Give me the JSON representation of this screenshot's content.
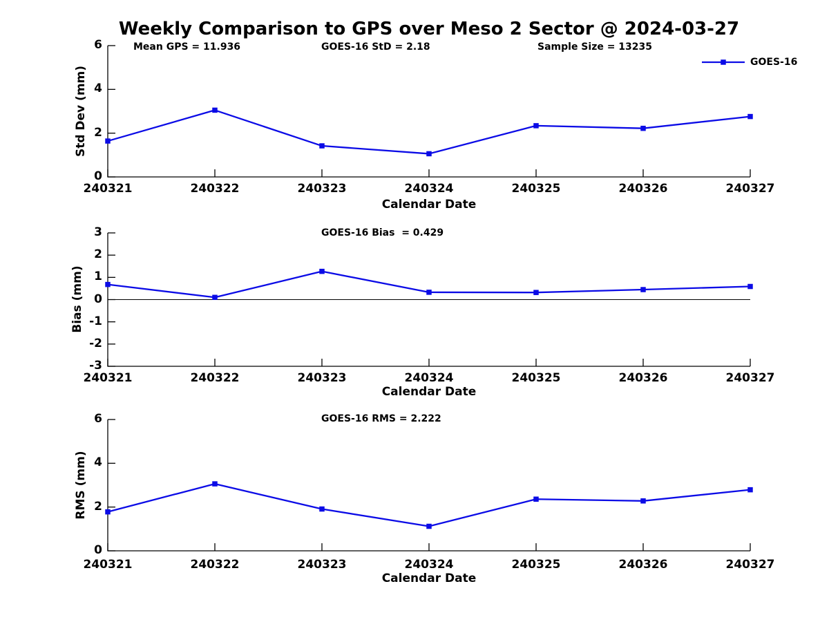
{
  "figure_title": "Weekly Comparison to GPS over Meso 2 Sector @ 2024-03-27",
  "colors": {
    "accent": "#0b0be6",
    "axis": "#000000",
    "background": "#ffffff",
    "text": "#000000"
  },
  "legend": {
    "label": "GOES-16",
    "position": "top-right",
    "marker": "filled-square"
  },
  "chart_data": [
    {
      "type": "line",
      "name": "std-dev",
      "ylabel": "Std Dev (mm)",
      "xlabel": "Calendar Date",
      "ylim": [
        0,
        6
      ],
      "yticks": [
        0,
        2,
        4,
        6
      ],
      "grid": false,
      "categories": [
        "240321",
        "240322",
        "240323",
        "240324",
        "240325",
        "240326",
        "240327"
      ],
      "annotations": [
        "Mean GPS = 11.936",
        "GOES-16 StD = 2.18",
        "Sample Size = 13235"
      ],
      "legend_entries": [
        "GOES-16"
      ],
      "series": [
        {
          "name": "GOES-16",
          "color": "#0b0be6",
          "marker": "square",
          "values": [
            1.64,
            3.05,
            1.42,
            1.06,
            2.34,
            2.22,
            2.76
          ]
        }
      ]
    },
    {
      "type": "line",
      "name": "bias",
      "ylabel": "Bias (mm)",
      "xlabel": "Calendar Date",
      "ylim": [
        -3,
        3
      ],
      "yticks": [
        3,
        2,
        1,
        0,
        -1,
        -2,
        -3
      ],
      "grid": false,
      "zero_line": true,
      "categories": [
        "240321",
        "240322",
        "240323",
        "240324",
        "240325",
        "240326",
        "240327"
      ],
      "annotations": [
        "GOES-16 Bias  = 0.429"
      ],
      "series": [
        {
          "name": "GOES-16",
          "color": "#0b0be6",
          "marker": "square",
          "values": [
            0.68,
            0.1,
            1.27,
            0.33,
            0.32,
            0.45,
            0.59
          ]
        }
      ]
    },
    {
      "type": "line",
      "name": "rms",
      "ylabel": "RMS (mm)",
      "xlabel": "Calendar Date",
      "ylim": [
        0,
        6
      ],
      "yticks": [
        0,
        2,
        4,
        6
      ],
      "grid": false,
      "categories": [
        "240321",
        "240322",
        "240323",
        "240324",
        "240325",
        "240326",
        "240327"
      ],
      "annotations": [
        "GOES-16 RMS = 2.222"
      ],
      "series": [
        {
          "name": "GOES-16",
          "color": "#0b0be6",
          "marker": "square",
          "values": [
            1.78,
            3.06,
            1.91,
            1.12,
            2.36,
            2.28,
            2.79
          ]
        }
      ]
    }
  ]
}
